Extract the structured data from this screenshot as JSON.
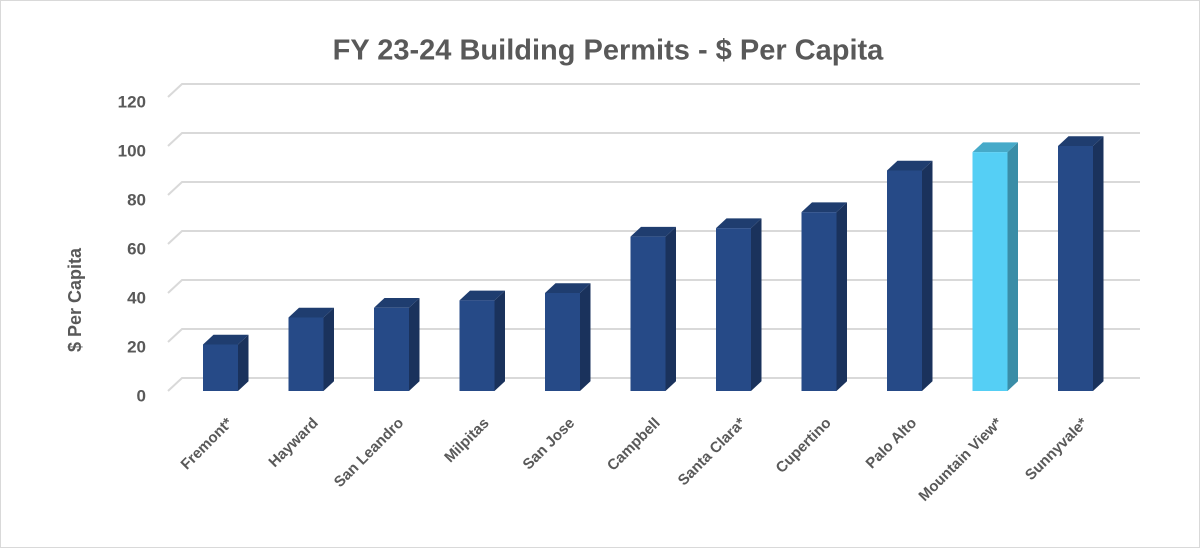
{
  "chart_data": {
    "type": "bar3d",
    "title": "FY 23-24 Building Permits - $ Per Capita",
    "y_label": "$ Per Capita",
    "categories": [
      "Fremont*",
      "Hayward",
      "San Leandro",
      "Milpitas",
      "San Jose",
      "Campbell",
      "Santa Clara*",
      "Cupertino",
      "Palo Alto",
      "Mountain View*",
      "Sunnyvale*"
    ],
    "values": [
      19,
      30,
      34,
      37,
      40,
      63,
      66.5,
      73,
      90,
      97.5,
      100
    ],
    "colors": [
      "#264a87",
      "#264a87",
      "#264a87",
      "#264a87",
      "#264a87",
      "#264a87",
      "#264a87",
      "#264a87",
      "#264a87",
      "#55cff5",
      "#264a87"
    ],
    "ylim": [
      0,
      120
    ],
    "yticks": [
      0,
      20,
      40,
      60,
      80,
      100,
      120
    ],
    "grid": true
  }
}
